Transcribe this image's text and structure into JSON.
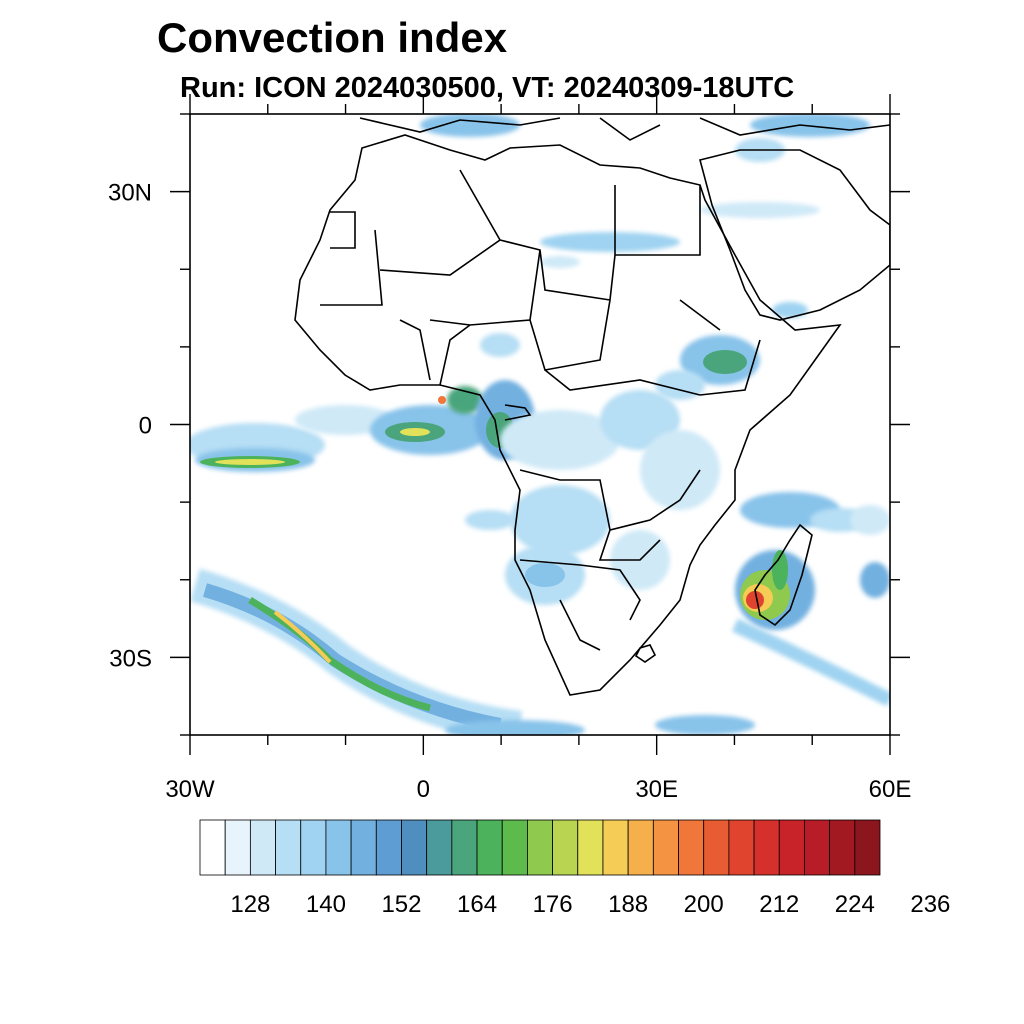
{
  "title": "Convection index",
  "subtitle": "Run: ICON 2024030500,  VT: 20240309-18UTC",
  "map": {
    "lon_range": [
      -30,
      60
    ],
    "lat_range": [
      -40,
      40
    ],
    "lat_ticks": [
      {
        "value": 30,
        "label": "30N"
      },
      {
        "value": 0,
        "label": "0"
      },
      {
        "value": -30,
        "label": "30S"
      }
    ],
    "lon_ticks": [
      {
        "value": -30,
        "label": "30W"
      },
      {
        "value": 0,
        "label": "0"
      },
      {
        "value": 30,
        "label": "30E"
      },
      {
        "value": 60,
        "label": "60E"
      }
    ]
  },
  "colorbar": {
    "colors": [
      "#ffffff",
      "#e8f4fb",
      "#cfe9f7",
      "#b6def4",
      "#9fd3f1",
      "#88c3ea",
      "#72b0e0",
      "#5e9dd4",
      "#4f8fbf",
      "#4b9a9c",
      "#4aa57c",
      "#4cb35c",
      "#5cbb4a",
      "#8fc94e",
      "#b8d450",
      "#e2e15a",
      "#f5cc55",
      "#f6b04b",
      "#f49341",
      "#f0763a",
      "#e85c33",
      "#e0442e",
      "#d6302c",
      "#c9232a",
      "#b71c27",
      "#a31922",
      "#8c161d"
    ],
    "tick_labels": [
      "128",
      "140",
      "152",
      "164",
      "176",
      "188",
      "200",
      "212",
      "224",
      "236"
    ]
  }
}
